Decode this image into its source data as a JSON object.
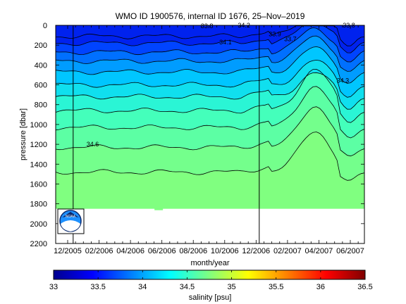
{
  "chart_data": {
    "type": "heatmap",
    "title": "WMO ID 1900576, internal ID 1676, 25–Nov–2019",
    "xlabel": "month/year",
    "ylabel": "pressure [dbar]",
    "x_ticks": [
      "12/2005",
      "02/2006",
      "04/2006",
      "06/2006",
      "08/2006",
      "10/2006",
      "12/2006",
      "02/2007",
      "04/2007",
      "06/2007"
    ],
    "y_ticks": [
      "0",
      "200",
      "400",
      "600",
      "800",
      "1000",
      "1200",
      "1400",
      "1600",
      "1800",
      "2000",
      "2200"
    ],
    "ylim": [
      0,
      2200
    ],
    "colorbar": {
      "label": "salinity [psu]",
      "range": [
        33,
        36.5
      ],
      "ticks": [
        "33",
        "33.5",
        "34",
        "34.5",
        "35",
        "35.5",
        "36",
        "36.5"
      ],
      "colormap": "jet"
    },
    "contour_labels": [
      "34.6",
      "34.3",
      "33.9",
      "34.1",
      "33.8",
      "34.2",
      "33.7",
      "33.8"
    ],
    "vertical_markers_months": [
      0.35,
      12.2
    ],
    "profile_max_pressure": 1850,
    "logo": "NOAA",
    "colors": {
      "background": "#ffffff",
      "data_deep": "#80ff80",
      "data_surface": "#0022ee"
    }
  }
}
